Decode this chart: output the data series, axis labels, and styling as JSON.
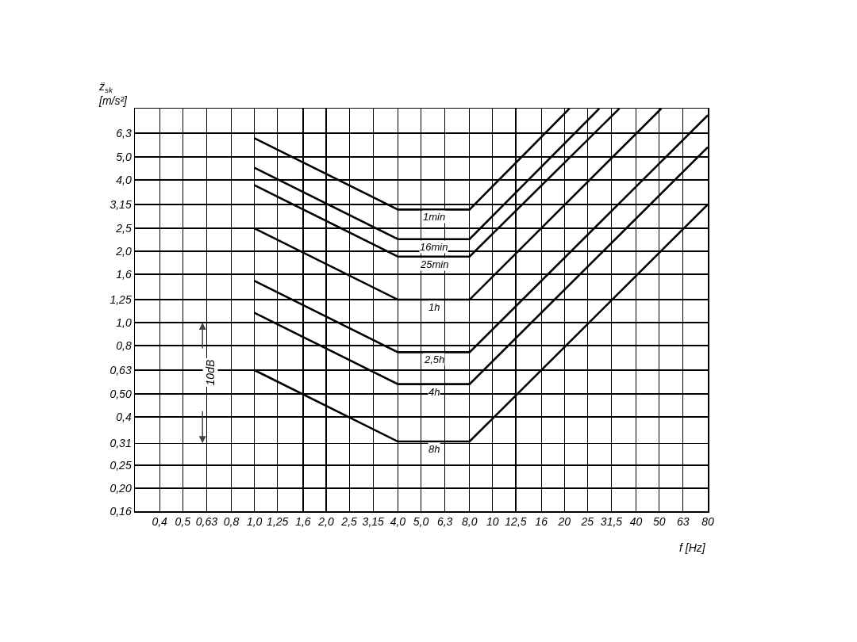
{
  "chart_data": {
    "type": "line",
    "xlabel": "f [Hz]",
    "ylabel": "z̈$_{sk}$\n[m/s²]",
    "log": "xy",
    "grid": true,
    "legend": false,
    "marker": "none",
    "line_style": "solid",
    "annotations": [
      "10dB"
    ],
    "xlim": [
      0.315,
      80
    ],
    "ylim": [
      0.16,
      8.0
    ],
    "xticks": [
      {
        "value": 0.4,
        "label": "0,4"
      },
      {
        "value": 0.5,
        "label": "0,5"
      },
      {
        "value": 0.63,
        "label": "0,63"
      },
      {
        "value": 0.8,
        "label": "0,8"
      },
      {
        "value": 1.0,
        "label": "1,0"
      },
      {
        "value": 1.25,
        "label": "1,25"
      },
      {
        "value": 1.6,
        "label": "1,6"
      },
      {
        "value": 2.0,
        "label": "2,0"
      },
      {
        "value": 2.5,
        "label": "2,5"
      },
      {
        "value": 3.15,
        "label": "3,15"
      },
      {
        "value": 4.0,
        "label": "4,0"
      },
      {
        "value": 5.0,
        "label": "5,0"
      },
      {
        "value": 6.3,
        "label": "6,3"
      },
      {
        "value": 8.0,
        "label": "8,0"
      },
      10,
      {
        "value": 12.5,
        "label": "12,5"
      },
      16,
      20,
      25,
      {
        "value": 31.5,
        "label": "31,5"
      },
      40,
      50,
      63,
      80
    ],
    "yticks": [
      {
        "value": 0.16,
        "label": "0,16"
      },
      {
        "value": 0.2,
        "label": "0,20"
      },
      {
        "value": 0.25,
        "label": "0,25"
      },
      {
        "value": 0.31,
        "label": "0,31"
      },
      {
        "value": 0.4,
        "label": "0,4"
      },
      {
        "value": 0.5,
        "label": "0,50"
      },
      {
        "value": 0.63,
        "label": "0,63"
      },
      {
        "value": 0.8,
        "label": "0,8"
      },
      {
        "value": 1.0,
        "label": "1,0"
      },
      {
        "value": 1.25,
        "label": "1,25"
      },
      {
        "value": 1.6,
        "label": "1,6"
      },
      {
        "value": 2.0,
        "label": "2,0"
      },
      {
        "value": 2.5,
        "label": "2,5"
      },
      {
        "value": 3.15,
        "label": "3,15"
      },
      {
        "value": 4.0,
        "label": "4,0"
      },
      {
        "value": 5.0,
        "label": "5,0"
      },
      {
        "value": 6.3,
        "label": "6,3"
      },
      {
        "value": 8.0,
        "label": null
      }
    ],
    "series": [
      {
        "name": "1min",
        "color": "#000000",
        "x": [
          1,
          4,
          8,
          21
        ],
        "values": [
          6.0,
          3.0,
          3.0,
          8.0
        ]
      },
      {
        "name": "16min",
        "color": "#000000",
        "x": [
          1,
          4,
          8,
          28
        ],
        "values": [
          4.5,
          2.25,
          2.25,
          8.0
        ]
      },
      {
        "name": "25min",
        "color": "#000000",
        "x": [
          1,
          4,
          8,
          34
        ],
        "values": [
          3.8,
          1.9,
          1.9,
          8.0
        ]
      },
      {
        "name": "1h",
        "color": "#000000",
        "x": [
          1,
          4,
          8,
          51
        ],
        "values": [
          2.5,
          1.25,
          1.25,
          8.0
        ]
      },
      {
        "name": "2,5h",
        "color": "#000000",
        "x": [
          1,
          4,
          8,
          80
        ],
        "values": [
          1.5,
          0.75,
          0.75,
          7.5
        ]
      },
      {
        "name": "4h",
        "color": "#000000",
        "x": [
          1,
          4,
          8,
          80
        ],
        "values": [
          1.1,
          0.55,
          0.55,
          5.5
        ]
      },
      {
        "name": "8h",
        "color": "#000000",
        "x": [
          1,
          4,
          8,
          80
        ],
        "values": [
          0.63,
          0.315,
          0.315,
          3.15
        ]
      }
    ]
  }
}
